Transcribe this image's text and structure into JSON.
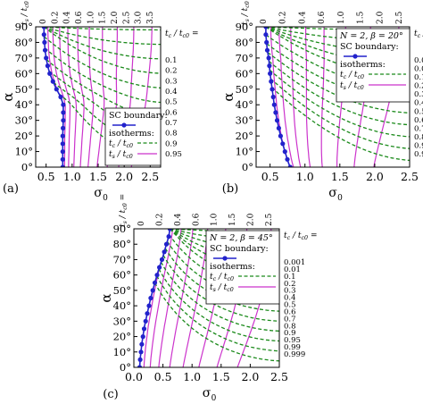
{
  "chart_data": [
    {
      "type": "line",
      "panel_label": "(a)",
      "xlabel": "σ",
      "xlabel_sub": "0",
      "ylabel": "α",
      "top_axis_label": "t_s / t_c0 =",
      "right_axis_label": "t_c / t_c0 =",
      "xlim": [
        0.3,
        2.7
      ],
      "ylim": [
        0,
        90
      ],
      "x_ticks": [
        "0.5",
        "1.0",
        "1.5",
        "2.0",
        "2.5"
      ],
      "x_tick_values": [
        0.5,
        1.0,
        1.5,
        2.0,
        2.5
      ],
      "y_ticks": [
        "0°",
        "10°",
        "20°",
        "30°",
        "40°",
        "50°",
        "60°",
        "70°",
        "80°",
        "90°"
      ],
      "top_ticks": [
        "0",
        "0.2",
        "0.4",
        "0.6",
        "1.0",
        "1.5",
        "2.0",
        "2.5",
        "3.0",
        "3.5"
      ],
      "right_ticks": [
        "0.1",
        "0.2",
        "0.3",
        "0.4",
        "0.5",
        "0.6",
        "0.7",
        "0.8",
        "0.9",
        "0.95"
      ],
      "legend": {
        "title": "SC boundary:",
        "subtitle": "isotherms:",
        "entries": [
          "t_c / t_c0",
          "t_s / t_c0"
        ],
        "position": "bottom-right"
      },
      "series": [
        {
          "kind": "sc_boundary",
          "x": [
            0.46,
            0.46,
            0.47,
            0.48,
            0.5,
            0.53,
            0.57,
            0.63,
            0.7,
            0.78,
            0.83,
            0.83,
            0.82,
            0.82
          ],
          "y": [
            90,
            85,
            80,
            75,
            70,
            65,
            60,
            55,
            50,
            45,
            40,
            30,
            20,
            0
          ]
        },
        {
          "kind": "t_s_isotherms",
          "values": [
            0,
            0.2,
            0.4,
            0.6,
            1.0,
            1.5,
            2.0,
            2.5,
            3.0,
            3.5
          ]
        },
        {
          "kind": "t_c_isotherms",
          "values": [
            0.1,
            0.2,
            0.3,
            0.4,
            0.5,
            0.6,
            0.7,
            0.8,
            0.9,
            0.95
          ]
        }
      ]
    },
    {
      "type": "line",
      "panel_label": "(b)",
      "params_n": "N = 2, β = 20°",
      "xlabel": "σ",
      "xlabel_sub": "0",
      "ylabel": "α",
      "top_axis_label": "t_s / t_c0 =",
      "right_axis_label": "t_c / t_c0 =",
      "xlim": [
        0.3,
        2.5
      ],
      "ylim": [
        0,
        90
      ],
      "x_ticks": [
        "0.5",
        "1.0",
        "1.5",
        "2.0",
        "2.5"
      ],
      "x_tick_values": [
        0.5,
        1.0,
        1.5,
        2.0,
        2.5
      ],
      "y_ticks": [
        "0°",
        "10°",
        "20°",
        "30°",
        "40°",
        "50°",
        "60°",
        "70°",
        "80°",
        "90°"
      ],
      "top_ticks": [
        "0",
        "0.2",
        "0.4",
        "0.6",
        "1.0",
        "1.5",
        "2.0",
        "2.5"
      ],
      "right_ticks": [
        "0.001",
        "0.01",
        "0.1",
        "0.2",
        "0.3",
        "0.4",
        "0.5",
        "0.6",
        "0.7",
        "0.8",
        "0.9",
        "0.95"
      ],
      "legend": {
        "title": "SC boundary:",
        "subtitle": "isotherms:",
        "entries": [
          "t_c / t_c0",
          "t_s / t_c0"
        ],
        "position": "top-right"
      },
      "series": [
        {
          "kind": "sc_boundary",
          "x": [
            0.44,
            0.44,
            0.45,
            0.46,
            0.48,
            0.5,
            0.53,
            0.56,
            0.6,
            0.65,
            0.7,
            0.74,
            0.77,
            0.79
          ],
          "y": [
            90,
            85,
            80,
            75,
            70,
            60,
            50,
            40,
            30,
            20,
            12,
            6,
            2,
            0
          ]
        },
        {
          "kind": "t_s_isotherms",
          "values": [
            0,
            0.2,
            0.4,
            0.6,
            1.0,
            1.5,
            2.0,
            2.5
          ]
        },
        {
          "kind": "t_c_isotherms",
          "values": [
            0.001,
            0.01,
            0.1,
            0.2,
            0.3,
            0.4,
            0.5,
            0.6,
            0.7,
            0.8,
            0.9,
            0.95
          ]
        }
      ]
    },
    {
      "type": "line",
      "panel_label": "(c)",
      "params_n": "N = 2, β = 45°",
      "xlabel": "σ",
      "xlabel_sub": "0",
      "ylabel": "α",
      "top_axis_label": "t_s / t_c0 =",
      "right_axis_label": "t_c / t_c0 =",
      "xlim": [
        0,
        2.5
      ],
      "ylim": [
        0,
        90
      ],
      "x_ticks": [
        "0.0",
        "0.5",
        "1.0",
        "1.5",
        "2.0",
        "2.5"
      ],
      "x_tick_values": [
        0,
        0.5,
        1.0,
        1.5,
        2.0,
        2.5
      ],
      "y_ticks": [
        "0°",
        "10°",
        "20°",
        "30°",
        "40°",
        "50°",
        "60°",
        "70°",
        "80°",
        "90°"
      ],
      "top_ticks": [
        "0",
        "0.2",
        "0.4",
        "0.6",
        "1.0",
        "1.5",
        "2.0",
        "2.5"
      ],
      "right_ticks": [
        "0.001",
        "0.01",
        "0.1",
        "0.2",
        "0.3",
        "0.4",
        "0.5",
        "0.6",
        "0.7",
        "0.8",
        "0.9",
        "0.95",
        "0.99",
        "0.999"
      ],
      "legend": {
        "title": "SC boundary:",
        "subtitle": "isotherms:",
        "entries": [
          "t_c / t_c0",
          "t_s / t_c0"
        ],
        "position": "top-right"
      },
      "series": [
        {
          "kind": "sc_boundary",
          "x": [
            0.62,
            0.6,
            0.56,
            0.5,
            0.43,
            0.36,
            0.29,
            0.23,
            0.18,
            0.14,
            0.11,
            0.1
          ],
          "y": [
            90,
            85,
            80,
            72,
            64,
            55,
            45,
            35,
            26,
            16,
            6,
            0
          ]
        },
        {
          "kind": "t_s_isotherms",
          "values": [
            0,
            0.2,
            0.4,
            0.6,
            1.0,
            1.5,
            2.0,
            2.5
          ]
        },
        {
          "kind": "t_c_isotherms",
          "values": [
            0.001,
            0.01,
            0.1,
            0.2,
            0.3,
            0.4,
            0.5,
            0.6,
            0.7,
            0.8,
            0.9,
            0.95,
            0.99,
            0.999
          ]
        }
      ]
    }
  ],
  "colors": {
    "sc_boundary": "#2222cc",
    "t_c_isotherm": "#1a8a1a",
    "t_s_isotherm": "#cc33cc",
    "axis": "#000000"
  }
}
